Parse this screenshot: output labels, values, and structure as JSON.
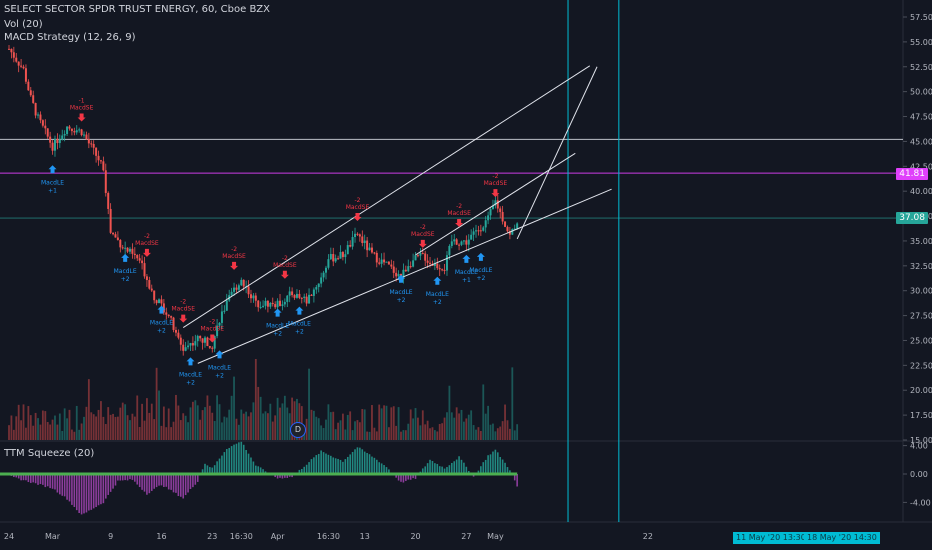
{
  "header": {
    "title": "SELECT SECTOR SPDR TRUST ENERGY, 60, Cboe BZX",
    "volume_indicator": "Vol (20)",
    "strategy": "MACD Strategy (12, 26, 9)",
    "oscillator": "TTM Squeeze (20)"
  },
  "price_axis": {
    "ticks": [
      "57.50",
      "55.00",
      "52.50",
      "50.00",
      "47.50",
      "45.00",
      "42.50",
      "40.00",
      "37.50",
      "35.00",
      "32.50",
      "30.00",
      "27.50",
      "25.00",
      "22.50",
      "20.00",
      "17.50",
      "15.00"
    ],
    "ylim": [
      15.0,
      57.5
    ],
    "current_price_label": "37.08",
    "level_label": "41.81"
  },
  "oscillator_axis": {
    "ticks": [
      "4.00",
      "0.00",
      "-4.00"
    ],
    "ylim": [
      -6,
      5
    ]
  },
  "time_axis": {
    "ticks": [
      "24",
      "Mar",
      "9",
      "16",
      "23",
      "16:30",
      "Apr",
      "16:30",
      "13",
      "20",
      "27",
      "May",
      "22"
    ],
    "hidden_ticks": [
      "11",
      "18"
    ],
    "cursor_labels": [
      "11 May '20   13:30",
      "18 May '20   14:30"
    ]
  },
  "badge": {
    "label": "D"
  },
  "signals": {
    "long_label": "MacdLE",
    "short_label": "MacdSE",
    "items": [
      {
        "type": "long",
        "qty": "+1",
        "x": "Mar 1",
        "y": 42.2
      },
      {
        "type": "short",
        "qty": "-1",
        "x": "Mar 5",
        "y": 47.4
      },
      {
        "type": "long",
        "qty": "+2",
        "x": "Mar 11",
        "y": 33.3
      },
      {
        "type": "short",
        "qty": "-2",
        "x": "Mar 14",
        "y": 33.8
      },
      {
        "type": "long",
        "qty": "+2",
        "x": "Mar 16",
        "y": 28.1
      },
      {
        "type": "short",
        "qty": "-2",
        "x": "Mar 19",
        "y": 27.2
      },
      {
        "type": "long",
        "qty": "+2",
        "x": "Mar 20",
        "y": 22.9
      },
      {
        "type": "short",
        "qty": "-2",
        "x": "Mar 23",
        "y": 25.2
      },
      {
        "type": "long",
        "qty": "+2",
        "x": "Mar 24",
        "y": 23.6
      },
      {
        "type": "short",
        "qty": "-2",
        "x": "Mar 26",
        "y": 32.5
      },
      {
        "type": "long",
        "qty": "+2",
        "x": "Apr 1",
        "y": 27.8
      },
      {
        "type": "short",
        "qty": "-2",
        "x": "Apr 2",
        "y": 31.6
      },
      {
        "type": "long",
        "qty": "+2",
        "x": "Apr 4",
        "y": 28.0
      },
      {
        "type": "short",
        "qty": "-2",
        "x": "Apr 12",
        "y": 37.4
      },
      {
        "type": "long",
        "qty": "+2",
        "x": "Apr 18",
        "y": 31.2
      },
      {
        "type": "short",
        "qty": "-2",
        "x": "Apr 21",
        "y": 34.7
      },
      {
        "type": "long",
        "qty": "+2",
        "x": "Apr 23",
        "y": 31.0
      },
      {
        "type": "short",
        "qty": "-2",
        "x": "Apr 26",
        "y": 36.8
      },
      {
        "type": "long",
        "qty": "+1",
        "x": "Apr 27",
        "y": 33.2
      },
      {
        "type": "long",
        "qty": "+2",
        "x": "Apr 29",
        "y": 33.4
      },
      {
        "type": "short",
        "qty": "-2",
        "x": "May 1",
        "y": 39.8
      }
    ]
  },
  "colors": {
    "background": "#131722",
    "up": "#26a69a",
    "down": "#ef5350",
    "long_signal": "#2196f3",
    "short_signal": "#f23645",
    "trendline": "#e0e3eb",
    "magenta_level": "#e040fb",
    "price_tag": "#26a69a",
    "vertical_cursor": "#00bcd4",
    "squeeze_pos": "#26a69a",
    "squeeze_neg": "#ab47bc",
    "squeeze_dot": "#4caf50"
  },
  "chart_data": [
    {
      "type": "candlestick",
      "title": "SELECT SECTOR SPDR TRUST ENERGY, 60, Cboe BZX",
      "x_range": [
        "Feb 24",
        "May 22"
      ],
      "ylim": [
        15.0,
        57.5
      ],
      "price_path": [
        [
          "Feb 24",
          54.3
        ],
        [
          "Feb 26",
          52.2
        ],
        [
          "Feb 27",
          49.3
        ],
        [
          "Feb 28",
          47.3
        ],
        [
          "Mar 1",
          44.5
        ],
        [
          "Mar 3",
          46.5
        ],
        [
          "Mar 5",
          46.0
        ],
        [
          "Mar 6",
          44.8
        ],
        [
          "Mar 8",
          42.4
        ],
        [
          "Mar 9",
          35.9
        ],
        [
          "Mar 11",
          34.2
        ],
        [
          "Mar 13",
          33.0
        ],
        [
          "Mar 15",
          29.4
        ],
        [
          "Mar 17",
          27.6
        ],
        [
          "Mar 18",
          25.5
        ],
        [
          "Mar 19",
          24.2
        ],
        [
          "Mar 21",
          25.2
        ],
        [
          "Mar 23",
          24.6
        ],
        [
          "Mar 24",
          27.2
        ],
        [
          "Mar 26",
          30.1
        ],
        [
          "Mar 27",
          31.1
        ],
        [
          "Mar 29",
          28.8
        ],
        [
          "Apr 1",
          28.6
        ],
        [
          "Apr 3",
          29.7
        ],
        [
          "Apr 5",
          29.0
        ],
        [
          "Apr 7",
          31.3
        ],
        [
          "Apr 8",
          33.2
        ],
        [
          "Apr 10",
          33.6
        ],
        [
          "Apr 12",
          35.7
        ],
        [
          "Apr 14",
          33.6
        ],
        [
          "Apr 16",
          32.6
        ],
        [
          "Apr 18",
          31.4
        ],
        [
          "Apr 19",
          32.7
        ],
        [
          "Apr 21",
          33.6
        ],
        [
          "Apr 22",
          32.8
        ],
        [
          "Apr 24",
          32.3
        ],
        [
          "Apr 25",
          35.0
        ],
        [
          "Apr 27",
          34.9
        ],
        [
          "Apr 28",
          35.7
        ],
        [
          "Apr 30",
          37.2
        ],
        [
          "May 1",
          39.0
        ],
        [
          "May 3",
          35.5
        ],
        [
          "May 4",
          37.08
        ]
      ],
      "horizontal_levels": [
        45.2,
        41.81,
        37.3
      ],
      "trendlines": [
        [
          [
            "Mar 19",
            26.3
          ],
          [
            "May 14",
            52.6
          ]
        ],
        [
          [
            "Mar 21",
            22.7
          ],
          [
            "May 17",
            40.2
          ]
        ],
        [
          [
            "Apr 20",
            33.6
          ],
          [
            "May 12",
            43.8
          ]
        ],
        [
          [
            "May 4",
            35.2
          ],
          [
            "May 15",
            52.5
          ]
        ]
      ],
      "vertical_lines": [
        "May 11",
        "May 18"
      ]
    },
    {
      "type": "bar",
      "title": "Vol (20)",
      "x_range": [
        "Feb 24",
        "May 4"
      ]
    },
    {
      "type": "histogram",
      "title": "TTM Squeeze (20)",
      "ylim": [
        -6,
        5
      ],
      "profile": [
        [
          "Feb 24",
          -0.3
        ],
        [
          "Mar 1",
          -2.0
        ],
        [
          "Mar 3",
          -3.5
        ],
        [
          "Mar 5",
          -5.8
        ],
        [
          "Mar 8",
          -4.0
        ],
        [
          "Mar 10",
          -1.0
        ],
        [
          "Mar 12",
          -0.8
        ],
        [
          "Mar 14",
          -2.8
        ],
        [
          "Mar 16",
          -1.5
        ],
        [
          "Mar 19",
          -3.4
        ],
        [
          "Mar 21",
          -1.0
        ],
        [
          "Mar 22",
          1.5
        ],
        [
          "Mar 23",
          0.8
        ],
        [
          "Mar 25",
          3.6
        ],
        [
          "Mar 27",
          4.6
        ],
        [
          "Mar 29",
          1.2
        ],
        [
          "Apr 1",
          -0.6
        ],
        [
          "Apr 3",
          -0.4
        ],
        [
          "Apr 4",
          0.5
        ],
        [
          "Apr 7",
          3.2
        ],
        [
          "Apr 10",
          1.8
        ],
        [
          "Apr 12",
          3.8
        ],
        [
          "Apr 14",
          2.5
        ],
        [
          "Apr 16",
          1.0
        ],
        [
          "Apr 18",
          -1.2
        ],
        [
          "Apr 20",
          -0.6
        ],
        [
          "Apr 22",
          2.0
        ],
        [
          "Apr 24",
          0.8
        ],
        [
          "Apr 26",
          2.4
        ],
        [
          "Apr 28",
          -0.4
        ],
        [
          "Apr 30",
          2.6
        ],
        [
          "May 1",
          3.4
        ],
        [
          "May 3",
          0.6
        ],
        [
          "May 4",
          -1.8
        ]
      ]
    }
  ]
}
